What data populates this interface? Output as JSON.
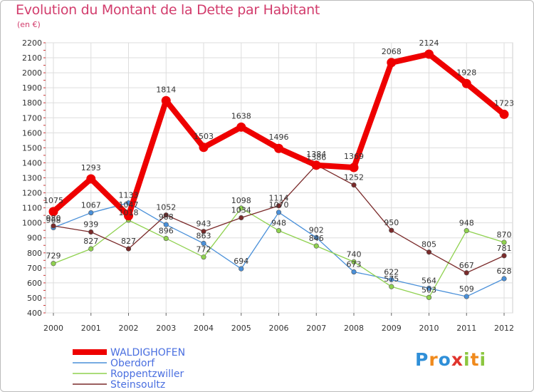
{
  "header": {
    "title": "Evolution du Montant de la Dette par Habitant",
    "subtitle": "(en €)"
  },
  "logo": {
    "text": "Proxiti",
    "colors": [
      "#2f8fd8",
      "#f08a1c",
      "#2f8fd8",
      "#e0342d",
      "#8cc63f",
      "#f08a1c",
      "#8cc63f"
    ]
  },
  "chart_data": {
    "type": "line",
    "title": "Evolution du Montant de la Dette par Habitant",
    "subtitle": "(en €)",
    "xlabel": "",
    "ylabel": "",
    "ylim": [
      400,
      2200
    ],
    "yticks": [
      400,
      500,
      600,
      700,
      800,
      900,
      1000,
      1100,
      1200,
      1300,
      1400,
      1500,
      1600,
      1700,
      1800,
      1900,
      2000,
      2100,
      2200
    ],
    "grid": true,
    "legend": "bottom-left",
    "categories": [
      "2000",
      "2001",
      "2002",
      "2003",
      "2004",
      "2005",
      "2006",
      "2007",
      "2008",
      "2009",
      "2010",
      "2011",
      "2012"
    ],
    "series": [
      {
        "name": "Oberdorf",
        "color": "#4a90d9",
        "values": [
          968,
          1067,
          1133,
          988,
          863,
          694,
          1070,
          902,
          673,
          622,
          564,
          509,
          628
        ]
      },
      {
        "name": "Roppentzwiller",
        "color": "#8fd14f",
        "values": [
          729,
          827,
          1018,
          896,
          772,
          1098,
          948,
          846,
          740,
          575,
          503,
          948,
          870
        ]
      },
      {
        "name": "Steinsoultz",
        "color": "#7a2a2a",
        "values": [
          980,
          939,
          827,
          1052,
          943,
          1034,
          1114,
          1386,
          1252,
          950,
          805,
          667,
          781
        ]
      },
      {
        "name": "WALDIGHOFEN",
        "color": "#ee0000",
        "values": [
          1075,
          1293,
          1047,
          1814,
          1503,
          1638,
          1496,
          1384,
          1369,
          2068,
          2124,
          1928,
          1723
        ]
      }
    ],
    "legend_order": [
      "WALDIGHOFEN",
      "Oberdorf",
      "Roppentzwiller",
      "Steinsoultz"
    ]
  }
}
